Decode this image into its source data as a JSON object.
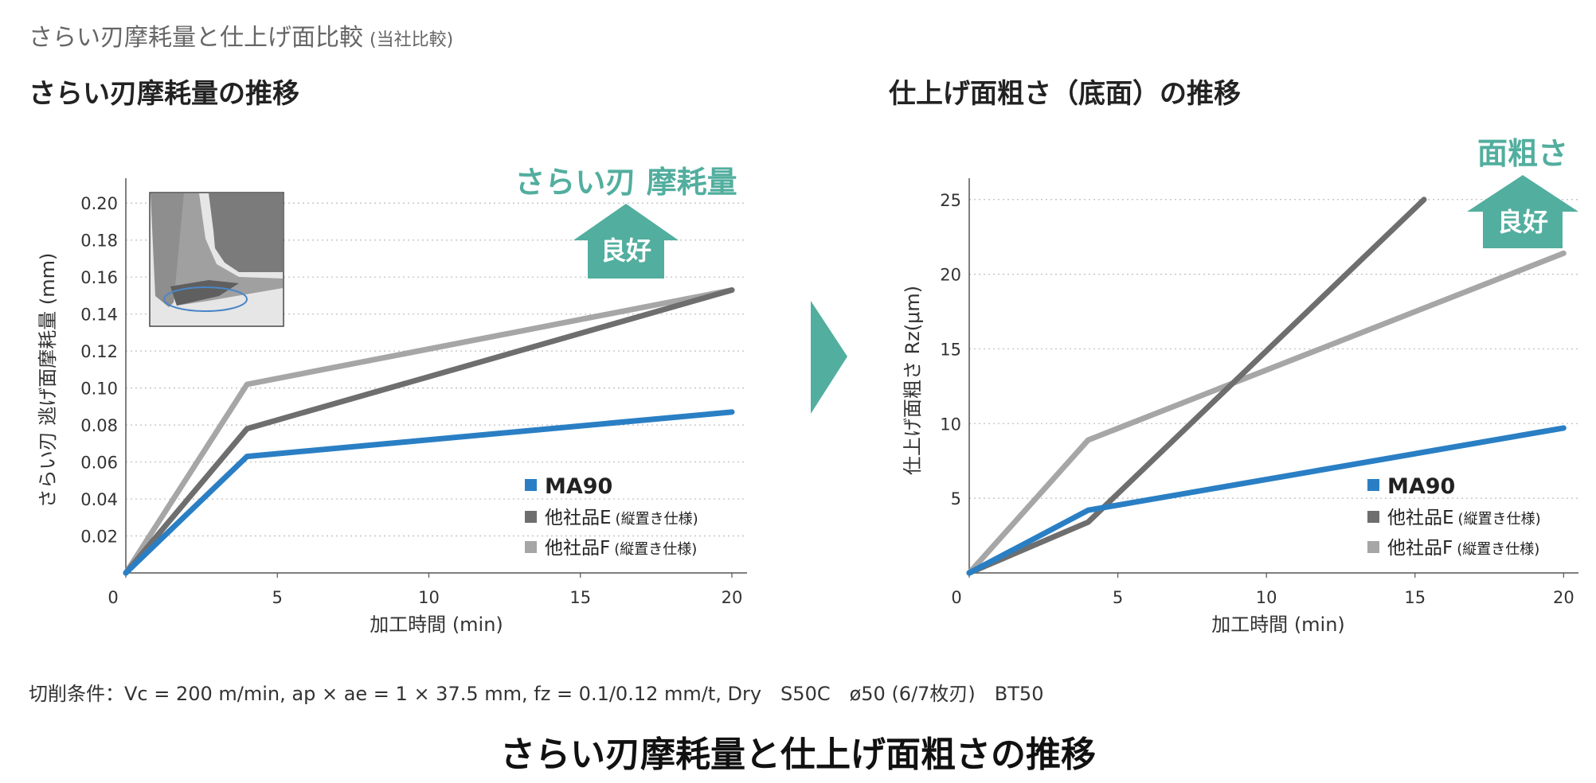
{
  "header": {
    "title": "さらい刃摩耗量と仕上げ面比較",
    "title_note": "(当社比較)",
    "left_subtitle": "さらい刃摩耗量の推移",
    "right_subtitle": "仕上げ面粗さ（底面）の推移"
  },
  "conditions": "切削条件：Vc = 200 m/min, ap × ae = 1 × 37.5 mm, fz = 0.1/0.12 mm/t, Dry　S50C　ø50 (6/7枚刃)　BT50",
  "footer_title": "さらい刃摩耗量と仕上げ面粗さの推移",
  "colors": {
    "ma90": "#2a7fc4",
    "company_e": "#6e6e6e",
    "company_f": "#a6a6a6",
    "accent": "#52ae9e"
  },
  "chart_data": [
    {
      "type": "line",
      "xlabel": "加工時間 (min)",
      "ylabel": "さらい刃 逃げ面摩耗量 (mm)",
      "x_ticks": [
        0,
        5,
        10,
        15,
        20
      ],
      "y_ticks": [
        0.02,
        0.04,
        0.06,
        0.08,
        0.1,
        0.12,
        0.14,
        0.16,
        0.18,
        0.2
      ],
      "xlim": [
        0,
        20.5
      ],
      "ylim": [
        0,
        0.21
      ],
      "grid": true,
      "legend_position": "bottom-right",
      "indicator_text": "さらい刃 摩耗量",
      "indicator_label": "良好",
      "series": [
        {
          "name": "MA90",
          "x": [
            0,
            4,
            20
          ],
          "y": [
            0,
            0.063,
            0.087
          ]
        },
        {
          "name": "他社品E",
          "note": "(縦置き仕様)",
          "x": [
            0,
            4,
            20
          ],
          "y": [
            0,
            0.078,
            0.153
          ]
        },
        {
          "name": "他社品F",
          "note": "(縦置き仕様)",
          "x": [
            0,
            4,
            20
          ],
          "y": [
            0,
            0.102,
            0.153
          ]
        }
      ]
    },
    {
      "type": "line",
      "xlabel": "加工時間 (min)",
      "ylabel": "仕上げ面粗さ Rz(μm)",
      "x_ticks": [
        0,
        5,
        10,
        15,
        20
      ],
      "y_ticks": [
        5,
        10,
        15,
        20,
        25
      ],
      "xlim": [
        0,
        20.5
      ],
      "ylim": [
        0,
        26
      ],
      "grid": true,
      "legend_position": "bottom-right",
      "indicator_text": "面粗さ",
      "indicator_label": "良好",
      "series": [
        {
          "name": "MA90",
          "x": [
            0,
            4,
            20
          ],
          "y": [
            0,
            4.2,
            9.7
          ]
        },
        {
          "name": "他社品E",
          "note": "(縦置き仕様)",
          "x": [
            0,
            4,
            15.3
          ],
          "y": [
            0,
            3.4,
            25
          ]
        },
        {
          "name": "他社品F",
          "note": "(縦置き仕様)",
          "x": [
            0,
            4,
            20
          ],
          "y": [
            0,
            8.9,
            21.4
          ]
        }
      ]
    }
  ]
}
